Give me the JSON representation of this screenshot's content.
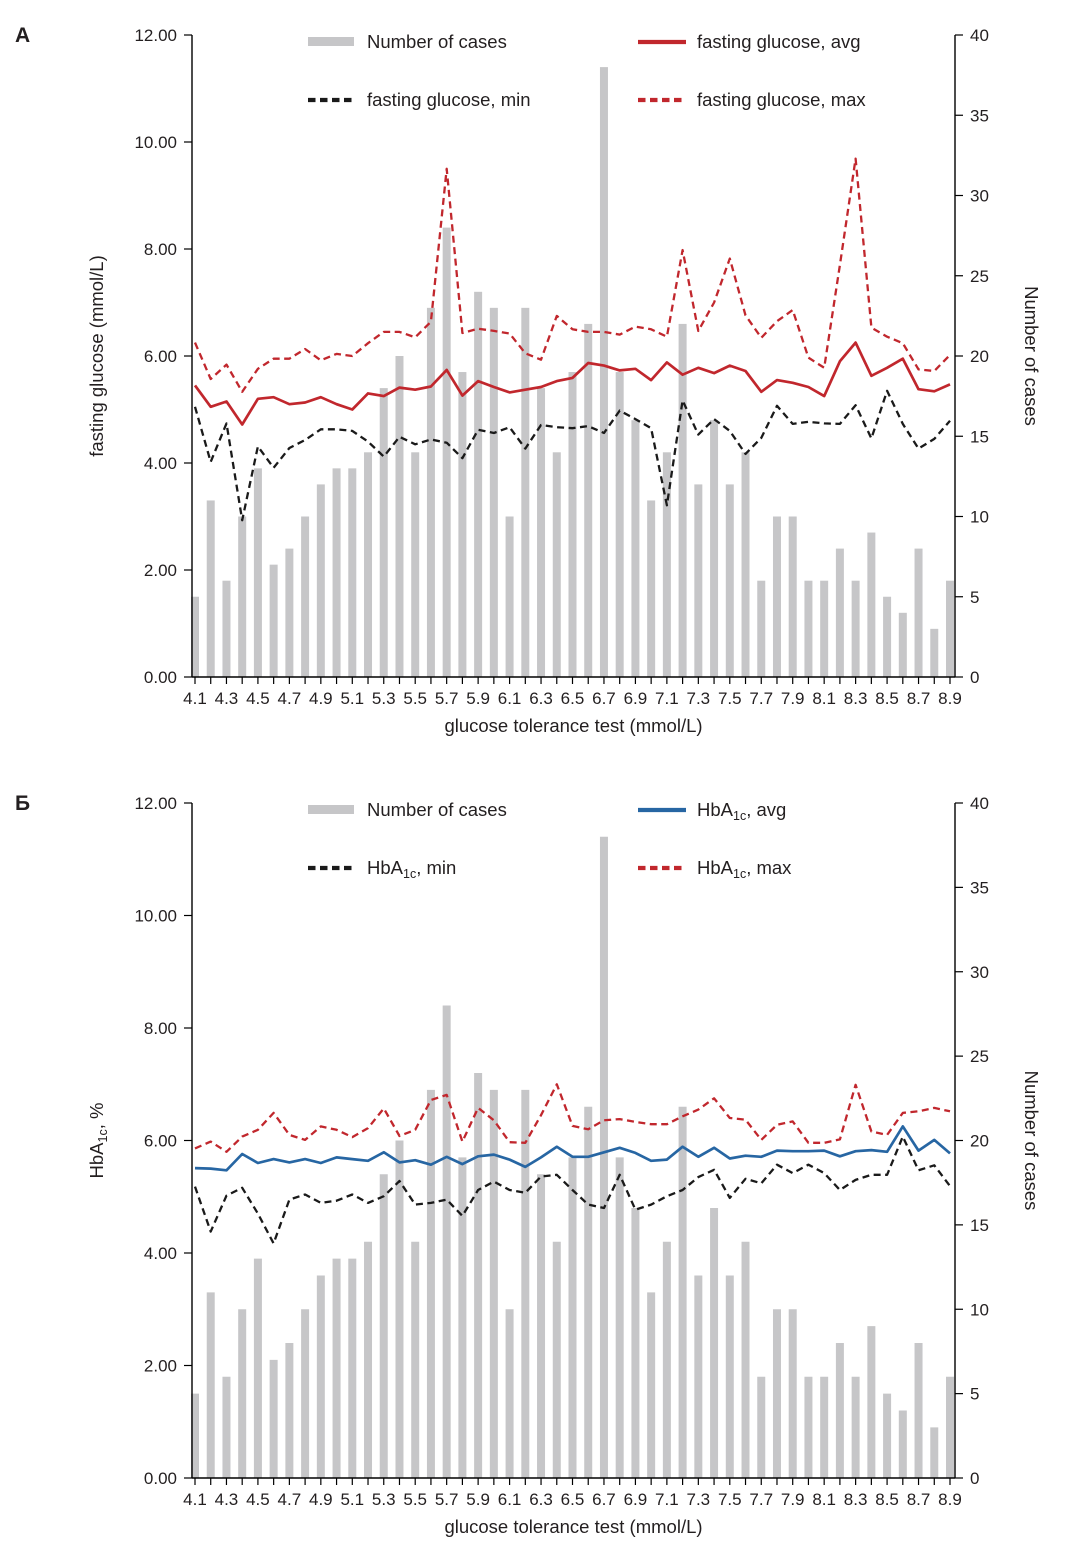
{
  "figure_title": "",
  "chart_data": [
    {
      "type": "bar+line",
      "panel_label": "А",
      "x_axis": {
        "title": "glucose tolerance test (mmol/L)",
        "labels_every": 2
      },
      "left_axis": {
        "title_parts": [
          "fasting glucose (mmol/L)",
          "",
          ""
        ],
        "ylim": [
          0,
          12
        ],
        "tick_labels": [
          "0.00",
          "2.00",
          "4.00",
          "6.00",
          "8.00",
          "10.00",
          "12.00"
        ]
      },
      "right_axis": {
        "title": "Number of cases",
        "ylim": [
          0,
          40
        ],
        "tick_labels": [
          "0",
          "5",
          "10",
          "15",
          "20",
          "25",
          "30",
          "35",
          "40"
        ]
      },
      "grid": false,
      "categories": [
        "4.1",
        "4.2",
        "4.3",
        "4.4",
        "4.5",
        "4.6",
        "4.7",
        "4.8",
        "4.9",
        "5.0",
        "5.1",
        "5.2",
        "5.3",
        "5.4",
        "5.5",
        "5.6",
        "5.7",
        "5.8",
        "5.9",
        "6.0",
        "6.1",
        "6.2",
        "6.3",
        "6.4",
        "6.5",
        "6.6",
        "6.7",
        "6.8",
        "6.9",
        "7.0",
        "7.1",
        "7.2",
        "7.3",
        "7.4",
        "7.5",
        "7.6",
        "7.7",
        "7.8",
        "7.9",
        "8.0",
        "8.1",
        "8.2",
        "8.3",
        "8.4",
        "8.5",
        "8.6",
        "8.7",
        "8.8",
        "8.9"
      ],
      "bars": {
        "name": "Number of cases",
        "color": "#c6c6c8",
        "axis": "right",
        "values": [
          5,
          11,
          6,
          10,
          13,
          7,
          8,
          10,
          12,
          13,
          13,
          14,
          18,
          20,
          14,
          23,
          28,
          19,
          24,
          23,
          10,
          23,
          18,
          14,
          19,
          22,
          38,
          19,
          16,
          11,
          14,
          22,
          12,
          16,
          12,
          14,
          6,
          10,
          10,
          6,
          6,
          8,
          6,
          9,
          5,
          4,
          8,
          3,
          6
        ]
      },
      "series": [
        {
          "name": "fasting glucose, min",
          "style": "dashed",
          "color": "#1a1a1a",
          "values": [
            5.05,
            4.02,
            4.74,
            2.93,
            4.31,
            3.91,
            4.28,
            4.43,
            4.63,
            4.63,
            4.6,
            4.4,
            4.12,
            4.49,
            4.35,
            4.44,
            4.38,
            4.09,
            4.62,
            4.56,
            4.67,
            4.27,
            4.71,
            4.67,
            4.65,
            4.69,
            4.56,
            4.98,
            4.82,
            4.65,
            3.21,
            5.17,
            4.53,
            4.82,
            4.6,
            4.17,
            4.47,
            5.07,
            4.73,
            4.77,
            4.74,
            4.73,
            5.08,
            4.46,
            5.35,
            4.73,
            4.27,
            4.45,
            4.79
          ]
        },
        {
          "name": "fasting glucose, max",
          "style": "dashed",
          "color": "#c1272d",
          "values": [
            6.25,
            5.57,
            5.84,
            5.33,
            5.76,
            5.95,
            5.95,
            6.13,
            5.92,
            6.04,
            6.0,
            6.24,
            6.45,
            6.45,
            6.35,
            6.64,
            9.5,
            6.43,
            6.51,
            6.47,
            6.42,
            6.05,
            5.93,
            6.75,
            6.5,
            6.45,
            6.45,
            6.4,
            6.55,
            6.5,
            6.36,
            7.98,
            6.47,
            7.0,
            7.82,
            6.76,
            6.34,
            6.65,
            6.86,
            5.97,
            5.78,
            7.7,
            9.69,
            6.53,
            6.36,
            6.24,
            5.75,
            5.72,
            6.02
          ]
        },
        {
          "name": "fasting glucose, avg",
          "style": "solid",
          "color": "#c1272d",
          "values": [
            5.45,
            5.05,
            5.15,
            4.72,
            5.2,
            5.23,
            5.1,
            5.13,
            5.23,
            5.1,
            5.0,
            5.3,
            5.25,
            5.41,
            5.37,
            5.43,
            5.74,
            5.26,
            5.53,
            5.42,
            5.32,
            5.37,
            5.42,
            5.53,
            5.59,
            5.87,
            5.82,
            5.73,
            5.76,
            5.55,
            5.88,
            5.65,
            5.78,
            5.68,
            5.82,
            5.72,
            5.33,
            5.55,
            5.5,
            5.42,
            5.25,
            5.9,
            6.25,
            5.63,
            5.78,
            5.95,
            5.38,
            5.34,
            5.47
          ]
        }
      ],
      "legend": [
        {
          "swatch": "bar",
          "color": "#c6c6c8",
          "label_parts": [
            "",
            "",
            "Number of cases"
          ]
        },
        {
          "swatch": "solid",
          "color": "#c1272d",
          "label_parts": [
            "",
            "",
            "fasting glucose, avg"
          ]
        },
        {
          "swatch": "dashed",
          "color": "#1a1a1a",
          "label_parts": [
            "",
            "",
            "fasting glucose, min"
          ]
        },
        {
          "swatch": "dashed",
          "color": "#c1272d",
          "label_parts": [
            "",
            "",
            "fasting glucose, max"
          ]
        }
      ]
    },
    {
      "type": "bar+line",
      "panel_label": "Б",
      "x_axis": {
        "title": "glucose tolerance test (mmol/L)",
        "labels_every": 2
      },
      "left_axis": {
        "title_parts": [
          "HbA",
          "1c",
          ", %"
        ],
        "ylim": [
          0,
          12
        ],
        "tick_labels": [
          "0.00",
          "2.00",
          "4.00",
          "6.00",
          "8.00",
          "10.00",
          "12.00"
        ]
      },
      "right_axis": {
        "title": "Number of cases",
        "ylim": [
          0,
          40
        ],
        "tick_labels": [
          "0",
          "5",
          "10",
          "15",
          "20",
          "25",
          "30",
          "35",
          "40"
        ]
      },
      "grid": false,
      "categories": [
        "4.1",
        "4.2",
        "4.3",
        "4.4",
        "4.5",
        "4.6",
        "4.7",
        "4.8",
        "4.9",
        "5.0",
        "5.1",
        "5.2",
        "5.3",
        "5.4",
        "5.5",
        "5.6",
        "5.7",
        "5.8",
        "5.9",
        "6.0",
        "6.1",
        "6.2",
        "6.3",
        "6.4",
        "6.5",
        "6.6",
        "6.7",
        "6.8",
        "6.9",
        "7.0",
        "7.1",
        "7.2",
        "7.3",
        "7.4",
        "7.5",
        "7.6",
        "7.7",
        "7.8",
        "7.9",
        "8.0",
        "8.1",
        "8.2",
        "8.3",
        "8.4",
        "8.5",
        "8.6",
        "8.7",
        "8.8",
        "8.9"
      ],
      "bars": {
        "name": "Number of cases",
        "color": "#c6c6c8",
        "axis": "right",
        "values": [
          5,
          11,
          6,
          10,
          13,
          7,
          8,
          10,
          12,
          13,
          13,
          14,
          18,
          20,
          14,
          23,
          28,
          19,
          24,
          23,
          10,
          23,
          18,
          14,
          19,
          22,
          38,
          19,
          16,
          11,
          14,
          22,
          12,
          16,
          12,
          14,
          6,
          10,
          10,
          6,
          6,
          8,
          6,
          9,
          5,
          4,
          8,
          3,
          6
        ]
      },
      "series": [
        {
          "name": "HbA1c, min",
          "style": "dashed",
          "color": "#1a1a1a",
          "values": [
            5.18,
            4.38,
            5.02,
            5.16,
            4.7,
            4.17,
            4.95,
            5.04,
            4.89,
            4.93,
            5.04,
            4.89,
            5.01,
            5.28,
            4.86,
            4.89,
            4.95,
            4.66,
            5.12,
            5.27,
            5.12,
            5.07,
            5.36,
            5.39,
            5.12,
            4.86,
            4.8,
            5.39,
            4.77,
            4.86,
            5.01,
            5.12,
            5.35,
            5.48,
            4.98,
            5.32,
            5.24,
            5.57,
            5.42,
            5.57,
            5.42,
            5.12,
            5.3,
            5.39,
            5.39,
            6.07,
            5.47,
            5.56,
            5.19
          ]
        },
        {
          "name": "HbA1c, max",
          "style": "dashed",
          "color": "#c1272d",
          "values": [
            5.86,
            5.98,
            5.8,
            6.07,
            6.19,
            6.49,
            6.1,
            6.01,
            6.25,
            6.19,
            6.06,
            6.22,
            6.57,
            6.08,
            6.19,
            6.72,
            6.81,
            5.98,
            6.58,
            6.36,
            5.97,
            5.96,
            6.45,
            7.0,
            6.26,
            6.2,
            6.36,
            6.38,
            6.33,
            6.29,
            6.29,
            6.43,
            6.55,
            6.75,
            6.4,
            6.37,
            6.01,
            6.28,
            6.34,
            5.96,
            5.96,
            6.02,
            6.99,
            6.16,
            6.1,
            6.49,
            6.52,
            6.58,
            6.52
          ]
        },
        {
          "name": "HbA1c, avg",
          "style": "solid",
          "color": "#2766a3",
          "values": [
            5.51,
            5.5,
            5.47,
            5.76,
            5.6,
            5.67,
            5.61,
            5.67,
            5.6,
            5.7,
            5.67,
            5.64,
            5.79,
            5.61,
            5.65,
            5.57,
            5.71,
            5.58,
            5.72,
            5.75,
            5.66,
            5.53,
            5.7,
            5.89,
            5.71,
            5.71,
            5.79,
            5.87,
            5.78,
            5.64,
            5.66,
            5.89,
            5.71,
            5.87,
            5.68,
            5.73,
            5.71,
            5.82,
            5.81,
            5.81,
            5.82,
            5.72,
            5.81,
            5.83,
            5.8,
            6.25,
            5.82,
            6.01,
            5.77
          ]
        }
      ],
      "legend": [
        {
          "swatch": "bar",
          "color": "#c6c6c8",
          "label_parts": [
            "",
            "",
            "Number of cases"
          ]
        },
        {
          "swatch": "solid",
          "color": "#2766a3",
          "label_parts": [
            "HbA",
            "1c",
            ", avg"
          ]
        },
        {
          "swatch": "dashed",
          "color": "#1a1a1a",
          "label_parts": [
            "HbA",
            "1c",
            ", min"
          ]
        },
        {
          "swatch": "dashed",
          "color": "#c1272d",
          "label_parts": [
            "HbA",
            "1c",
            ", max"
          ]
        }
      ]
    }
  ]
}
